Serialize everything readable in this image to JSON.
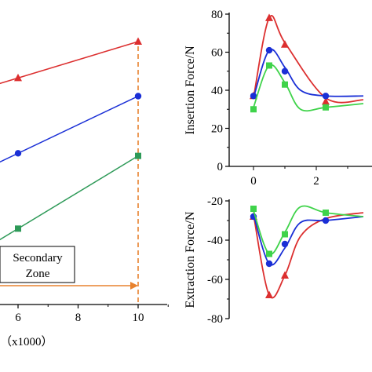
{
  "colors": {
    "red": "#dc2f2f",
    "blue": "#1a2fd6",
    "green": "#2e9a58",
    "green_insertion": "#3fd34a",
    "orange": "#e8822e",
    "axis": "#000000"
  },
  "zone_box": {
    "line1": "Secondary",
    "line2": "Zone",
    "axis_unit": "（x1000）"
  },
  "chart_data": [
    {
      "id": "left",
      "type": "line",
      "xlabel": "",
      "ylabel": "",
      "xlim": [
        4.6,
        11
      ],
      "x_ticks": [
        "6",
        "8",
        "10"
      ],
      "x_tick_values": [
        6,
        8,
        10
      ],
      "axis_unit_label": "（x1000）",
      "series": [
        {
          "color": "red",
          "marker": "triangle",
          "x": [
            6,
            10
          ],
          "y": [
            0.86,
            1.0
          ]
        },
        {
          "color": "blue",
          "marker": "circle",
          "x": [
            6,
            10
          ],
          "y": [
            0.57,
            0.79
          ]
        },
        {
          "color": "green",
          "marker": "square",
          "x": [
            6,
            10
          ],
          "y": [
            0.28,
            0.56
          ]
        }
      ],
      "reference_line": {
        "x": 10,
        "style": "dashed",
        "color": "orange"
      },
      "arrow": {
        "to_x": 10,
        "color": "orange"
      },
      "annotation": "Secondary Zone"
    },
    {
      "id": "insertion",
      "type": "line",
      "ylabel": "Insertion Force/N",
      "xlim": [
        -0.35,
        4.0
      ],
      "ylim": [
        0,
        80
      ],
      "y_ticks": [
        "0",
        "20",
        "40",
        "60",
        "80"
      ],
      "y_tick_values": [
        0,
        20,
        40,
        60,
        80
      ],
      "series": [
        {
          "color": "red",
          "marker": "triangle",
          "x": [
            0,
            0.5,
            1,
            2.3,
            3.5,
            4.0
          ],
          "y": [
            36,
            78,
            65,
            36,
            35,
            36
          ],
          "markers_x": [
            0,
            0.5,
            1,
            2.3
          ],
          "markers_y": [
            37,
            78,
            64,
            34
          ]
        },
        {
          "color": "blue",
          "marker": "circle",
          "x": [
            0,
            0.5,
            1,
            1.5,
            2.3,
            3.5,
            4.0
          ],
          "y": [
            36,
            61,
            52,
            40,
            37,
            37,
            36
          ],
          "markers_x": [
            0,
            0.5,
            1,
            2.3
          ],
          "markers_y": [
            37,
            61,
            50,
            37
          ]
        },
        {
          "color": "green_insertion",
          "marker": "square",
          "x": [
            0,
            0.5,
            1,
            1.5,
            2.3,
            3.5,
            4.0
          ],
          "y": [
            31,
            53,
            44,
            30,
            31,
            33,
            32
          ],
          "markers_x": [
            0,
            0.5,
            1,
            2.3
          ],
          "markers_y": [
            30,
            53,
            43,
            31
          ]
        }
      ]
    },
    {
      "id": "extraction",
      "type": "line",
      "ylabel": "Extraction Force/N",
      "xlim": [
        -0.35,
        4.0
      ],
      "ylim": [
        -80,
        -15
      ],
      "x_ticks": [
        "0",
        "2"
      ],
      "x_tick_values": [
        0,
        2
      ],
      "y_ticks": [
        "-20",
        "-40",
        "-60",
        "-80"
      ],
      "y_tick_values": [
        -20,
        -40,
        -60,
        -80
      ],
      "series": [
        {
          "color": "red",
          "marker": "triangle",
          "x": [
            0,
            0.5,
            1,
            1.5,
            2.3,
            3.5,
            4.0
          ],
          "y": [
            -27,
            -68,
            -58,
            -38,
            -29,
            -26,
            -25
          ],
          "markers_x": [
            0,
            0.5,
            1
          ],
          "markers_y": [
            -28,
            -68,
            -58
          ]
        },
        {
          "color": "blue",
          "marker": "circle",
          "x": [
            0,
            0.5,
            1,
            1.5,
            2.3,
            3.5,
            4.0
          ],
          "y": [
            -27,
            -52,
            -44,
            -31,
            -30,
            -28,
            -28
          ],
          "markers_x": [
            0,
            0.5,
            1,
            2.3
          ],
          "markers_y": [
            -28,
            -52,
            -42,
            -30
          ]
        },
        {
          "color": "green_insertion",
          "marker": "square",
          "x": [
            0,
            0.5,
            1,
            1.5,
            2.3,
            3.5,
            4.0
          ],
          "y": [
            -25,
            -47,
            -36,
            -23,
            -26,
            -28,
            -28
          ],
          "markers_x": [
            0,
            0.5,
            1,
            2.3
          ],
          "markers_y": [
            -24,
            -47,
            -37,
            -26
          ]
        }
      ]
    }
  ]
}
